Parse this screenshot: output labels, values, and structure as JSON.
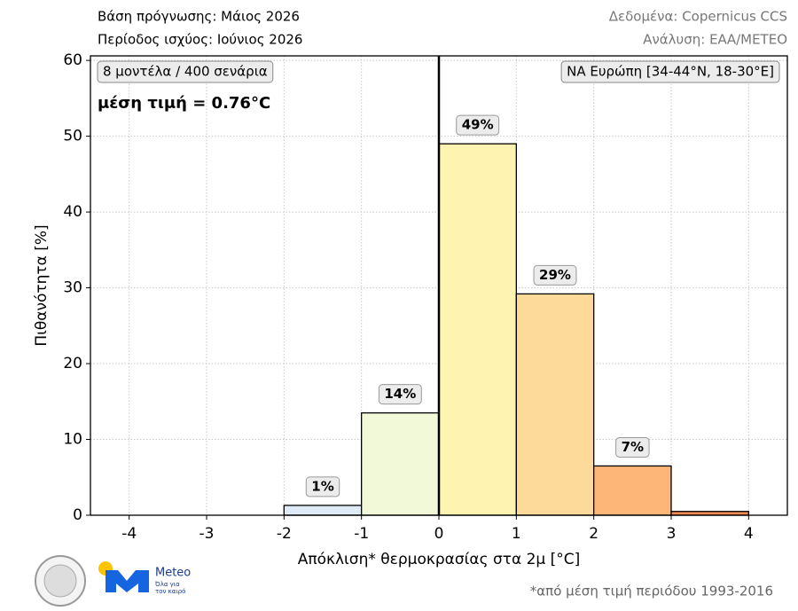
{
  "chart_data": {
    "type": "histogram",
    "header_left": [
      "Βάση πρόγνωσης: Μάιος 2026",
      "Περίοδος ισχύος: Ιούνιος 2026"
    ],
    "header_right": [
      "Δεδομένα: Copernicus CCS",
      "Ανάλυση: ΕΑΑ/METEO"
    ],
    "info_box": "8 μοντέλα / 400 σενάρια",
    "mean_text": "μέση τιμή = 0.76°C",
    "region_box": "ΝΑ Ευρώπη [34-44°N, 18-30°E]",
    "x_label": "Απόκλιση* θερμοκρασίας στα 2μ [°C]",
    "y_label": "Πιθανότητα [%]",
    "footnote": "*από μέση τιμή περιόδου 1993-2016",
    "logo_text": [
      "Meteo",
      "Όλα για",
      "τον καιρό"
    ],
    "bins": [
      -4,
      -3,
      -2,
      -1,
      0,
      1,
      2,
      3,
      4
    ],
    "values": [
      0,
      0,
      1.3,
      13.5,
      49,
      29.2,
      6.5,
      0.5
    ],
    "value_labels": [
      null,
      null,
      "1%",
      "14%",
      "49%",
      "29%",
      "7%",
      null
    ],
    "colors": [
      "#deebf7",
      "#deebf7",
      "#deebf7",
      "#f1f9d9",
      "#fff3b2",
      "#fdd99a",
      "#fdb677",
      "#ef8a52"
    ],
    "vline": 0,
    "xlim": [
      -4.5,
      4.5
    ],
    "ylim": [
      0,
      60.6
    ],
    "xticks": [
      -4,
      -3,
      -2,
      -1,
      0,
      1,
      2,
      3,
      4
    ],
    "yticks": [
      0,
      10,
      20,
      30,
      40,
      50,
      60
    ],
    "grid": true
  }
}
